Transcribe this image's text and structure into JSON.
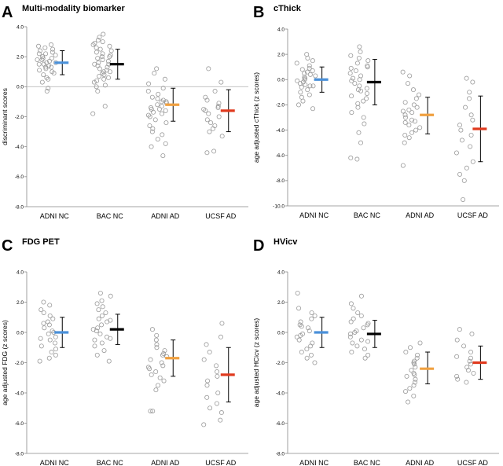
{
  "colors": {
    "ADNI NC": "#4a90d9",
    "BAC NC": "#000000",
    "ADNI AD": "#f0a040",
    "UCSF AD": "#e03a1e",
    "point": "#9a9a9a",
    "axis": "#888888"
  },
  "chart_data": [
    {
      "letter": "A",
      "type": "scatter",
      "title": "Multi-modality biomarker",
      "ylabel": "discriminant scores",
      "ylim": [
        -8,
        4
      ],
      "yticks": [
        "4.0",
        "2.0",
        "0.0",
        "-2.0",
        "-4.0",
        "-6.0",
        "-8.0"
      ],
      "categories": [
        "ADNI NC",
        "BAC NC",
        "ADNI AD",
        "UCSF AD"
      ],
      "zero_line": true,
      "series": [
        {
          "name": "ADNI NC",
          "mean": 1.6,
          "sd_low": 0.8,
          "sd_high": 2.4,
          "points": [
            2.8,
            2.7,
            2.6,
            2.5,
            2.4,
            2.3,
            2.2,
            2.1,
            2.0,
            1.9,
            1.8,
            1.8,
            1.7,
            1.6,
            1.5,
            1.5,
            1.4,
            1.3,
            1.2,
            1.1,
            1.0,
            0.9,
            0.8,
            0.6,
            0.5,
            0.3,
            -0.1,
            -0.3,
            2.2,
            1.9,
            1.6,
            1.3
          ]
        },
        {
          "name": "BAC NC",
          "mean": 1.5,
          "sd_low": 0.5,
          "sd_high": 2.5,
          "points": [
            3.5,
            3.3,
            3.1,
            3.0,
            2.9,
            2.8,
            2.7,
            2.6,
            2.5,
            2.4,
            2.3,
            2.2,
            2.1,
            2.0,
            1.9,
            1.8,
            1.7,
            1.6,
            1.5,
            1.4,
            1.3,
            1.2,
            1.1,
            1.0,
            0.9,
            0.8,
            0.7,
            0.6,
            0.5,
            0.3,
            0.1,
            0.0,
            -0.3,
            -1.3,
            -1.8,
            2.0,
            1.5,
            1.0,
            0.4
          ]
        },
        {
          "name": "ADNI AD",
          "mean": -1.2,
          "sd_low": -2.3,
          "sd_high": -0.1,
          "points": [
            1.2,
            0.9,
            0.5,
            0.2,
            -0.1,
            -0.3,
            -0.5,
            -0.7,
            -0.8,
            -0.9,
            -1.0,
            -1.1,
            -1.2,
            -1.3,
            -1.4,
            -1.5,
            -1.6,
            -1.7,
            -1.8,
            -1.9,
            -2.0,
            -2.2,
            -2.4,
            -2.6,
            -2.8,
            -3.0,
            -3.2,
            -3.5,
            -3.8,
            -4.0,
            -4.6,
            -1.0,
            -1.5
          ]
        },
        {
          "name": "UCSF AD",
          "mean": -1.6,
          "sd_low": -3.0,
          "sd_high": -0.2,
          "points": [
            1.2,
            0.3,
            -0.3,
            -0.7,
            -0.9,
            -1.1,
            -1.3,
            -1.5,
            -1.6,
            -1.8,
            -2.0,
            -2.2,
            -2.4,
            -2.6,
            -2.8,
            -3.0,
            -3.3,
            -4.3,
            -4.4,
            -1.4
          ]
        }
      ]
    },
    {
      "letter": "B",
      "type": "scatter",
      "title": "cThick",
      "ylabel": "age adjusted cThick (z scores)",
      "ylim": [
        -10,
        4
      ],
      "yticks": [
        "4.0",
        "2.0",
        "0.0",
        "-2.0",
        "-4.0",
        "-6.0",
        "-8.0",
        "-10.0"
      ],
      "categories": [
        "ADNI NC",
        "BAC NC",
        "ADNI AD",
        "UCSF AD"
      ],
      "zero_line": false,
      "series": [
        {
          "name": "ADNI NC",
          "mean": 0.0,
          "sd_low": -1.0,
          "sd_high": 1.0,
          "points": [
            2.0,
            1.7,
            1.5,
            1.3,
            1.1,
            0.9,
            0.7,
            0.6,
            0.5,
            0.4,
            0.3,
            0.2,
            0.1,
            0.0,
            -0.1,
            -0.2,
            -0.3,
            -0.4,
            -0.5,
            -0.6,
            -0.8,
            -1.0,
            -1.2,
            -1.4,
            -1.7,
            -2.0,
            -2.3,
            0.8,
            -0.5
          ]
        },
        {
          "name": "BAC NC",
          "mean": -0.2,
          "sd_low": -2.0,
          "sd_high": 1.6,
          "points": [
            2.6,
            2.2,
            1.9,
            1.7,
            1.5,
            1.3,
            1.1,
            0.9,
            0.7,
            0.5,
            0.3,
            0.1,
            -0.1,
            -0.3,
            -0.5,
            -0.7,
            -0.9,
            -1.1,
            -1.3,
            -1.5,
            -1.7,
            -1.9,
            -2.2,
            -2.6,
            -3.0,
            -3.5,
            -4.2,
            -5.0,
            -6.2,
            -6.3,
            1.0,
            0.0,
            -0.8
          ]
        },
        {
          "name": "ADNI AD",
          "mean": -2.8,
          "sd_low": -4.3,
          "sd_high": -1.4,
          "points": [
            0.6,
            0.3,
            -0.3,
            -0.8,
            -1.2,
            -1.5,
            -1.8,
            -2.0,
            -2.2,
            -2.4,
            -2.6,
            -2.8,
            -3.0,
            -3.2,
            -3.4,
            -3.6,
            -3.8,
            -4.0,
            -4.2,
            -4.4,
            -4.6,
            -5.0,
            -6.8,
            -2.5,
            -3.3
          ]
        },
        {
          "name": "UCSF AD",
          "mean": -3.9,
          "sd_low": -6.5,
          "sd_high": -1.3,
          "points": [
            0.1,
            -0.2,
            -1.0,
            -1.5,
            -2.2,
            -2.8,
            -3.2,
            -3.6,
            -4.0,
            -4.4,
            -4.8,
            -5.3,
            -5.8,
            -6.5,
            -7.0,
            -7.5,
            -8.0,
            -9.5
          ]
        }
      ]
    },
    {
      "letter": "C",
      "type": "scatter",
      "title": "FDG PET",
      "ylabel": "age adjusted FDG (z scores)",
      "ylim": [
        -8,
        4
      ],
      "yticks": [
        "4.0",
        "2.0",
        "0.0",
        "-2.0",
        "-4.0",
        "-6.0",
        "-8.0"
      ],
      "categories": [
        "ADNI NC",
        "BAC NC",
        "ADNI AD",
        "UCSF AD"
      ],
      "zero_line": false,
      "series": [
        {
          "name": "ADNI NC",
          "mean": 0.0,
          "sd_low": -1.0,
          "sd_high": 1.0,
          "points": [
            2.0,
            1.8,
            1.5,
            1.3,
            1.1,
            0.9,
            0.7,
            0.5,
            0.3,
            0.1,
            0.0,
            -0.1,
            -0.3,
            -0.5,
            -0.7,
            -0.9,
            -1.1,
            -1.3,
            -1.5,
            -1.7,
            -1.9,
            0.6,
            -0.4
          ]
        },
        {
          "name": "BAC NC",
          "mean": 0.2,
          "sd_low": -0.8,
          "sd_high": 1.2,
          "points": [
            2.6,
            2.4,
            2.1,
            1.9,
            1.7,
            1.5,
            1.3,
            1.1,
            0.9,
            0.7,
            0.5,
            0.3,
            0.1,
            -0.1,
            -0.3,
            -0.5,
            -0.7,
            -0.9,
            -1.2,
            -1.5,
            -1.9,
            0.8,
            0.2,
            -0.4
          ]
        },
        {
          "name": "ADNI AD",
          "mean": -1.7,
          "sd_low": -2.9,
          "sd_high": -0.5,
          "points": [
            0.2,
            -0.2,
            -0.5,
            -0.8,
            -1.0,
            -1.2,
            -1.4,
            -1.6,
            -1.8,
            -2.0,
            -2.2,
            -2.4,
            -2.6,
            -2.8,
            -3.0,
            -3.2,
            -3.5,
            -3.8,
            -5.2,
            -5.2,
            -1.5,
            -2.3
          ]
        },
        {
          "name": "UCSF AD",
          "mean": -2.8,
          "sd_low": -4.6,
          "sd_high": -1.0,
          "points": [
            0.6,
            -0.3,
            -0.8,
            -1.3,
            -1.8,
            -2.2,
            -2.6,
            -2.9,
            -3.2,
            -3.5,
            -4.0,
            -4.3,
            -4.7,
            -5.0,
            -5.3,
            -5.8,
            -6.1
          ]
        }
      ]
    },
    {
      "letter": "D",
      "type": "scatter",
      "title": "HVicv",
      "ylabel": "age adjusted HCicv (z scores)",
      "ylim": [
        -8,
        4
      ],
      "yticks": [
        "4.0",
        "2.0",
        "0.0",
        "-2.0",
        "-4.0",
        "-6.0",
        "-8.0"
      ],
      "categories": [
        "ADNI NC",
        "BAC NC",
        "ADNI AD",
        "UCSF AD"
      ],
      "zero_line": false,
      "series": [
        {
          "name": "ADNI NC",
          "mean": 0.0,
          "sd_low": -1.0,
          "sd_high": 1.0,
          "points": [
            2.6,
            1.6,
            1.3,
            1.1,
            0.9,
            0.7,
            0.5,
            0.3,
            0.1,
            -0.1,
            -0.3,
            -0.5,
            -0.7,
            -0.9,
            -1.1,
            -1.3,
            -1.5,
            -1.7,
            -2.0,
            0.4,
            -0.2
          ]
        },
        {
          "name": "BAC NC",
          "mean": -0.1,
          "sd_low": -1.0,
          "sd_high": 0.8,
          "points": [
            2.4,
            1.9,
            1.6,
            1.3,
            1.1,
            0.9,
            0.7,
            0.5,
            0.3,
            0.1,
            -0.1,
            -0.3,
            -0.5,
            -0.7,
            -0.9,
            -1.1,
            -1.3,
            -1.5,
            -1.7,
            0.6,
            0.0,
            -0.6
          ]
        },
        {
          "name": "ADNI AD",
          "mean": -2.4,
          "sd_low": -3.4,
          "sd_high": -1.3,
          "points": [
            -0.7,
            -1.0,
            -1.3,
            -1.5,
            -1.7,
            -1.9,
            -2.1,
            -2.3,
            -2.5,
            -2.7,
            -2.9,
            -3.1,
            -3.3,
            -3.5,
            -3.7,
            -3.9,
            -4.2,
            -4.6,
            -2.0,
            -2.8
          ]
        },
        {
          "name": "UCSF AD",
          "mean": -2.0,
          "sd_low": -3.1,
          "sd_high": -0.9,
          "points": [
            0.2,
            -0.1,
            -0.5,
            -0.9,
            -1.3,
            -1.6,
            -1.9,
            -2.1,
            -2.3,
            -2.5,
            -2.7,
            -2.9,
            -3.1,
            -3.3,
            -1.7
          ]
        }
      ]
    }
  ]
}
